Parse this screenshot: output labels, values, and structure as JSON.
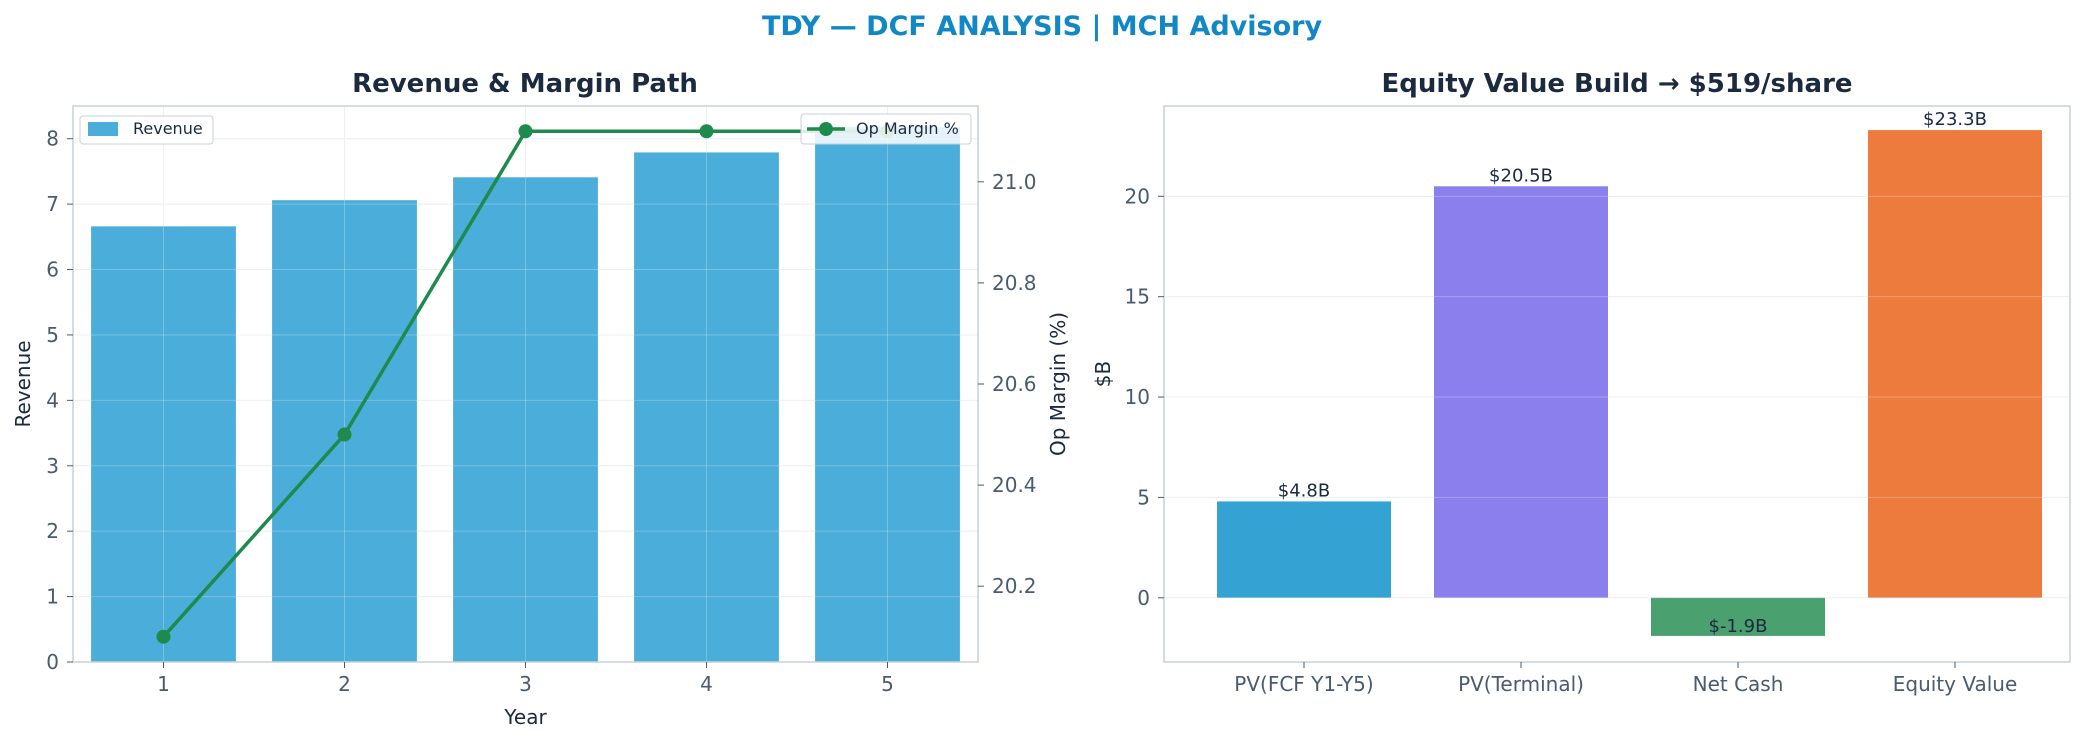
{
  "suptitle": "TDY — DCF ANALYSIS | MCH Advisory",
  "colors": {
    "title": "#1188c4",
    "revenue": "#4badd9",
    "margin_line": "#1e8a4c",
    "pv_fcf": "#34a3d4",
    "pv_terminal": "#8a7fec",
    "net_cash": "#4aa06e",
    "equity_value": "#ec7b3d"
  },
  "chart_data": [
    {
      "type": "bar",
      "title": "Revenue & Margin Path",
      "xlabel": "Year",
      "ylabel": "Revenue",
      "y2label": "Op Margin (%)",
      "categories": [
        "1",
        "2",
        "3",
        "4",
        "5"
      ],
      "series": [
        {
          "name": "Revenue",
          "type": "bar",
          "axis": "left",
          "values": [
            6.66,
            7.06,
            7.41,
            7.79,
            8.18
          ]
        },
        {
          "name": "Op Margin %",
          "type": "line",
          "axis": "right",
          "values": [
            20.1,
            20.5,
            21.1,
            21.1,
            21.1
          ]
        }
      ],
      "ylim": [
        0,
        8.5
      ],
      "y_ticks": [
        "0",
        "1",
        "2",
        "3",
        "4",
        "5",
        "6",
        "7",
        "8"
      ],
      "y2lim": [
        20.05,
        21.15
      ],
      "y2_ticks": [
        "20.2",
        "20.4",
        "20.6",
        "20.8",
        "21.0"
      ],
      "legend": [
        "top-left",
        "top-right"
      ],
      "grid": true
    },
    {
      "type": "bar",
      "title": "Equity Value Build → $519/share",
      "xlabel": "",
      "ylabel": "$B",
      "categories": [
        "PV(FCF Y1-Y5)",
        "PV(Terminal)",
        "Net Cash",
        "Equity Value"
      ],
      "values": [
        4.8,
        20.5,
        -1.9,
        23.3
      ],
      "data_labels": [
        "$4.8B",
        "$20.5B",
        "$-1.9B",
        "$23.3B"
      ],
      "ylim": [
        -3.2,
        24.5
      ],
      "y_ticks": [
        "0",
        "5",
        "10",
        "15",
        "20"
      ],
      "grid": true
    }
  ]
}
